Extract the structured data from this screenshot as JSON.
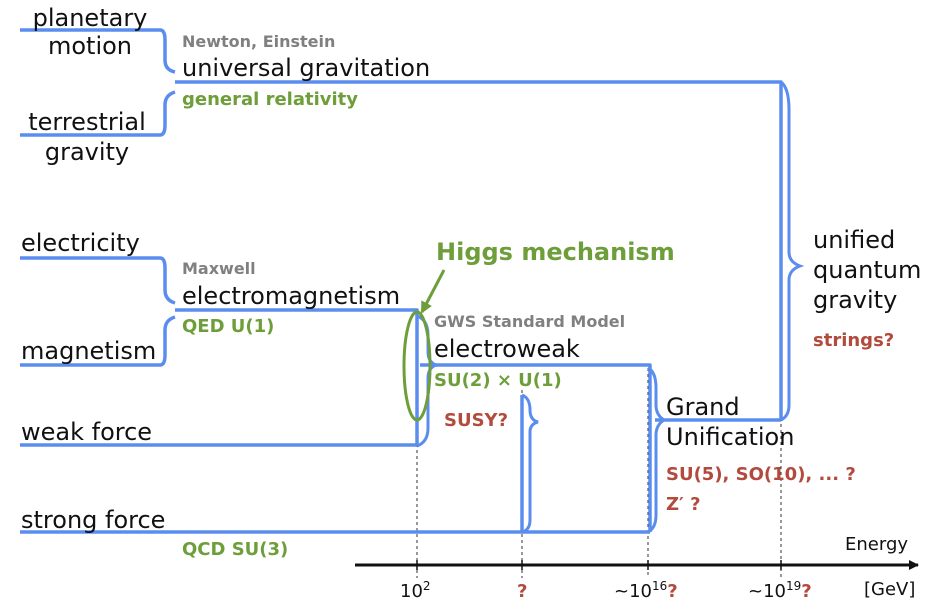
{
  "forces": {
    "planetary_motion": [
      "planetary",
      "motion"
    ],
    "terrestrial_gravity": [
      "terrestrial",
      "gravity"
    ],
    "electricity": "electricity",
    "magnetism": "magnetism",
    "weak_force": "weak force",
    "strong_force": "strong force"
  },
  "gravitation": {
    "authors": "Newton, Einstein",
    "name": "universal gravitation",
    "theory": "general relativity"
  },
  "electromagnetism": {
    "authors": "Maxwell",
    "name": "electromagnetism",
    "theory": "QED U(1)"
  },
  "higgs": {
    "label": "Higgs mechanism"
  },
  "electroweak": {
    "authors": "GWS Standard Model",
    "name": "electroweak",
    "group": "SU(2) × U(1)"
  },
  "susy": "SUSY?",
  "strong": {
    "theory": "QCD SU(3)"
  },
  "gut": {
    "name": [
      "Grand",
      "Unification"
    ],
    "groups": "SU(5), SO(10), ... ?",
    "zprime": "Z′ ?"
  },
  "quantum_gravity": {
    "name": [
      "unified",
      "quantum",
      "gravity"
    ],
    "theory": "strings?"
  },
  "axis": {
    "label": "Energy",
    "unit": "[GeV]",
    "ticks": [
      {
        "base": "10",
        "exp": "2",
        "suffix": ""
      },
      {
        "base": "",
        "exp": "",
        "suffix": "?"
      },
      {
        "base": "~10",
        "exp": "16",
        "suffix": "?"
      },
      {
        "base": "~10",
        "exp": "19",
        "suffix": "?"
      }
    ]
  },
  "colors": {
    "line": "#5b8def",
    "green": "#6e9e3a",
    "red": "#b24a3e",
    "gray": "#808080",
    "black": "#111111"
  }
}
